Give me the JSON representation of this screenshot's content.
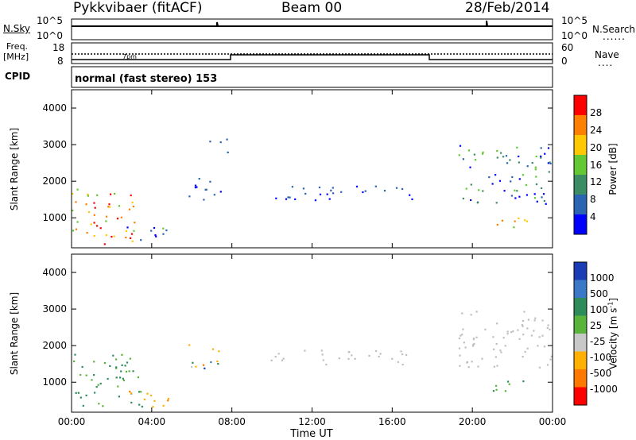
{
  "header": {
    "title": "Pykkvibaer (fitACF)",
    "beam": "Beam 00",
    "date": "28/Feb/2014"
  },
  "nsky_panel": {
    "label": "N.Sky",
    "left_ticks": [
      "10^5",
      "10^0"
    ],
    "right_ticks": [
      "10^5",
      "10^0"
    ],
    "right_label": "N.Search"
  },
  "freq_panel": {
    "label_line1": "Freq.",
    "label_line2": "[MHz]",
    "left_ticks": [
      "18",
      "8"
    ],
    "right_ticks": [
      "60",
      "0"
    ],
    "right_label": "Nave",
    "in_panel_label": "7pm"
  },
  "cpid_panel": {
    "label": "CPID",
    "text": "normal (fast stereo) 153"
  },
  "colors": {
    "power_scale": [
      "#0000ff",
      "#2c64b4",
      "#3c8c64",
      "#64c832",
      "#ffc800",
      "#ff8000",
      "#ff0000"
    ],
    "velocity_scale": [
      "#1a3cb4",
      "#3c78c8",
      "#2e8c5a",
      "#5ab43c",
      "#c8c8c8",
      "#ffb000",
      "#ff7800",
      "#ff0000"
    ],
    "ground_scatter": "#bebebe"
  },
  "chart_data": [
    {
      "type": "heatmap",
      "name": "power",
      "ylabel": "Slant Range [km]",
      "yticks": [
        "1000",
        "2000",
        "3000",
        "4000"
      ],
      "ylim": [
        180,
        4500
      ],
      "xlim": [
        0,
        24
      ],
      "colorbar": {
        "label": "Power [dB]",
        "ticks": [
          "4",
          "8",
          "12",
          "16",
          "20",
          "24",
          "28"
        ],
        "range": [
          0,
          32
        ]
      },
      "regions": [
        {
          "t0": 0.0,
          "t1": 3.3,
          "r0": 300,
          "r1": 1800,
          "level": "high"
        },
        {
          "t0": 2.5,
          "t1": 4.8,
          "r0": 300,
          "r1": 800,
          "level": "mid"
        },
        {
          "t0": 5.8,
          "t1": 7.5,
          "r0": 1400,
          "r1": 2100,
          "level": "low"
        },
        {
          "t0": 6.8,
          "t1": 7.8,
          "r0": 2800,
          "r1": 3200,
          "level": "low"
        },
        {
          "t0": 9.9,
          "t1": 17.0,
          "r0": 1500,
          "r1": 1900,
          "level": "low"
        },
        {
          "t0": 19.3,
          "t1": 24.0,
          "r0": 1400,
          "r1": 3000,
          "level": "mid"
        },
        {
          "t0": 21.0,
          "t1": 22.8,
          "r0": 700,
          "r1": 1100,
          "level": "high"
        }
      ]
    },
    {
      "type": "heatmap",
      "name": "velocity",
      "ylabel": "Slant Range [km]",
      "yticks": [
        "1000",
        "2000",
        "3000",
        "4000"
      ],
      "ylim": [
        180,
        4500
      ],
      "xlim": [
        0,
        24
      ],
      "xlabel": "Time UT",
      "xticks": [
        "00:00",
        "04:00",
        "08:00",
        "12:00",
        "16:00",
        "20:00",
        "00:00"
      ],
      "colorbar": {
        "label": "Velocity [m s^-1]",
        "ticks": [
          "1000",
          "500",
          "100",
          "25",
          "-25",
          "-100",
          "-500",
          "-1000"
        ]
      },
      "regions": [
        {
          "t0": 0.0,
          "t1": 3.5,
          "r0": 300,
          "r1": 1800,
          "level": "green"
        },
        {
          "t0": 2.5,
          "t1": 4.8,
          "r0": 300,
          "r1": 800,
          "level": "orange"
        },
        {
          "t0": 5.8,
          "t1": 7.5,
          "r0": 1400,
          "r1": 2100,
          "level": "mixed"
        },
        {
          "t0": 9.9,
          "t1": 17.0,
          "r0": 1500,
          "r1": 1900,
          "level": "ground"
        },
        {
          "t0": 19.3,
          "t1": 24.0,
          "r0": 1400,
          "r1": 3000,
          "level": "ground"
        },
        {
          "t0": 21.0,
          "t1": 22.8,
          "r0": 700,
          "r1": 1100,
          "level": "green"
        }
      ]
    }
  ]
}
